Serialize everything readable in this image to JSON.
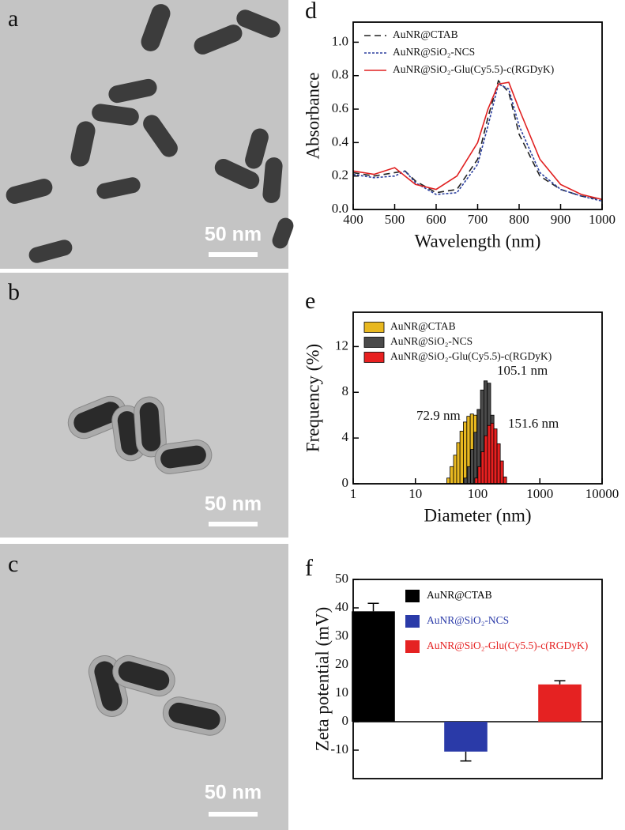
{
  "panels": [
    {
      "label": "a",
      "scale_bar": "50 nm"
    },
    {
      "label": "b",
      "scale_bar": "50 nm"
    },
    {
      "label": "c",
      "scale_bar": "50 nm"
    }
  ],
  "chart_data": [
    {
      "type": "line",
      "label": "d",
      "xlabel": "Wavelength (nm)",
      "ylabel": "Absorbance",
      "x": [
        400,
        450,
        500,
        525,
        550,
        600,
        650,
        700,
        725,
        750,
        775,
        800,
        850,
        900,
        950,
        1000
      ],
      "series": [
        {
          "name": "AuNR@CTAB",
          "color": "#222222",
          "linestyle": "dashed",
          "values": [
            0.22,
            0.2,
            0.22,
            0.23,
            0.17,
            0.1,
            0.12,
            0.3,
            0.55,
            0.77,
            0.7,
            0.45,
            0.2,
            0.12,
            0.08,
            0.06
          ]
        },
        {
          "name": "AuNR@SiO₂-NCS",
          "color": "#2b3f9e",
          "linestyle": "dotted",
          "values": [
            0.21,
            0.19,
            0.2,
            0.23,
            0.16,
            0.09,
            0.1,
            0.27,
            0.5,
            0.75,
            0.72,
            0.5,
            0.22,
            0.12,
            0.08,
            0.05
          ]
        },
        {
          "name": "AuNR@SiO₂-Glu(Cy5.5)-c(RGDyK)",
          "color": "#e02020",
          "linestyle": "solid",
          "values": [
            0.23,
            0.21,
            0.25,
            0.2,
            0.15,
            0.12,
            0.2,
            0.4,
            0.6,
            0.75,
            0.76,
            0.6,
            0.3,
            0.15,
            0.09,
            0.06
          ]
        }
      ],
      "xlim": [
        400,
        1000
      ],
      "xticks": [
        400,
        500,
        600,
        700,
        800,
        900,
        1000
      ],
      "ylim": [
        0,
        1.12
      ],
      "yticks": [
        {
          "value": 0,
          "label": "0.0"
        },
        0.2,
        0.4,
        0.6,
        0.8,
        {
          "value": 1,
          "label": "1.0"
        }
      ],
      "legend": "upper left"
    },
    {
      "type": "histogram",
      "label": "e",
      "xlabel": "Diameter (nm)",
      "ylabel": "Frequency (%)",
      "xscale": "log",
      "series": [
        {
          "name": "AuNR@CTAB",
          "color": "#e8b820",
          "bins": [
            32,
            36,
            41,
            46,
            52,
            59,
            67,
            76,
            86,
            97,
            110
          ],
          "values": [
            0.5,
            1.5,
            2.5,
            3.6,
            4.6,
            5.4,
            5.9,
            6.1,
            6.0,
            4.4
          ]
        },
        {
          "name": "AuNR@SiO₂-NCS",
          "color": "#4a4a4a",
          "bins": [
            60,
            68,
            77,
            87,
            98,
            111,
            126,
            143,
            162,
            183,
            207
          ],
          "values": [
            0.5,
            1.5,
            3,
            4.5,
            6.5,
            8.2,
            9,
            8.8,
            6,
            2.5
          ]
        },
        {
          "name": "AuNR@SiO₂-Glu(Cy5.5)-c(RGDyK)",
          "color": "#e82020",
          "bins": [
            90,
            101,
            114,
            128,
            144,
            162,
            182,
            205,
            231,
            260,
            292
          ],
          "values": [
            0.5,
            1.5,
            2.8,
            4.2,
            5.1,
            5.3,
            4.8,
            3.5,
            2,
            0.6
          ]
        }
      ],
      "annotations": [
        "72.9 nm",
        "105.1 nm",
        "151.6 nm"
      ],
      "xlim": [
        1,
        10000
      ],
      "xticks": [
        1,
        10,
        100,
        1000,
        10000
      ],
      "ylim": [
        0,
        15
      ],
      "yticks": [
        0,
        4,
        8,
        12
      ],
      "legend": "upper left"
    },
    {
      "type": "bar",
      "label": "f",
      "ylabel": "Zeta potential (mV)",
      "categories": [
        null
      ],
      "series": [
        {
          "name": "AuNR@CTAB",
          "color": "#000000",
          "values": [
            38.8
          ],
          "errors": [
            2.8
          ]
        },
        {
          "name": "AuNR@SiO₂-NCS",
          "color": "#2a3aa8",
          "values": [
            -10.5
          ],
          "errors": [
            3.3
          ]
        },
        {
          "name": "AuNR@SiO₂-Glu(Cy5.5)-c(RGDyK)",
          "color": "#e52222",
          "values": [
            13.1
          ],
          "errors": [
            1.3
          ]
        }
      ],
      "ylim": [
        -20,
        50
      ],
      "yticks": [
        -10,
        0,
        10,
        20,
        30,
        40,
        50
      ],
      "legend": "upper right"
    }
  ]
}
